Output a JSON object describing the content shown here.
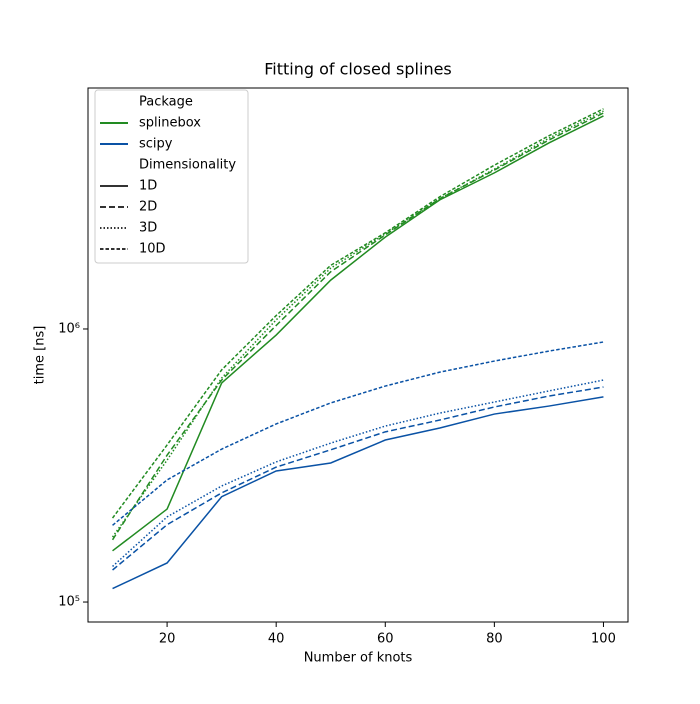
{
  "chart_data": {
    "type": "line",
    "title": "Fitting of closed splines",
    "x_label": "Number of knots",
    "y_label": "time [ns]",
    "log_y": true,
    "x": [
      10,
      20,
      30,
      40,
      50,
      60,
      70,
      80,
      90,
      100
    ],
    "xlim": [
      5.5,
      104.5
    ],
    "xticks": [
      20,
      40,
      60,
      80,
      100
    ],
    "ylim": [
      84500,
      7630000
    ],
    "yticks": [
      {
        "value": 100000,
        "label": "10⁵"
      },
      {
        "value": 1000000,
        "label": "10⁶"
      }
    ],
    "legend": {
      "position": "upper left",
      "package_title": "Package",
      "packages": [
        {
          "name": "splinebox",
          "color": "#228b22"
        },
        {
          "name": "scipy",
          "color": "#0a52a5"
        }
      ],
      "dimensionality_title": "Dimensionality",
      "dimensions": [
        {
          "name": "1D",
          "dash": "none"
        },
        {
          "name": "2D",
          "dash": "6,3"
        },
        {
          "name": "3D",
          "dash": "1.5,2"
        },
        {
          "name": "10D",
          "dash": "3.5,2"
        }
      ]
    },
    "series": [
      {
        "package": 0,
        "dimensionality": 0,
        "values": [
          154000,
          219000,
          634000,
          950000,
          1510000,
          2170000,
          2970000,
          3730000,
          4800000,
          6030000
        ]
      },
      {
        "package": 0,
        "dimensionality": 1,
        "values": [
          169000,
          345000,
          650000,
          1030000,
          1620000,
          2210000,
          3000000,
          3820000,
          4920000,
          6180000
        ]
      },
      {
        "package": 0,
        "dimensionality": 2,
        "values": [
          173000,
          331000,
          661000,
          1080000,
          1670000,
          2230000,
          3000000,
          3850000,
          5000000,
          6280000
        ]
      },
      {
        "package": 0,
        "dimensionality": 3,
        "values": [
          203000,
          376000,
          708000,
          1120000,
          1710000,
          2250000,
          3050000,
          3980000,
          5100000,
          6400000
        ]
      },
      {
        "package": 1,
        "dimensionality": 0,
        "values": [
          112000,
          139000,
          243000,
          302000,
          323000,
          392000,
          434000,
          488000,
          522000,
          564000
        ]
      },
      {
        "package": 1,
        "dimensionality": 1,
        "values": [
          131000,
          192000,
          251000,
          312000,
          361000,
          420000,
          464000,
          518000,
          568000,
          613000
        ]
      },
      {
        "package": 1,
        "dimensionality": 2,
        "values": [
          135000,
          205000,
          266000,
          326000,
          382000,
          441000,
          492000,
          540000,
          593000,
          650000
        ]
      },
      {
        "package": 1,
        "dimensionality": 3,
        "values": [
          191000,
          280000,
          363000,
          449000,
          536000,
          618000,
          695000,
          763000,
          830000,
          896000
        ]
      }
    ]
  }
}
